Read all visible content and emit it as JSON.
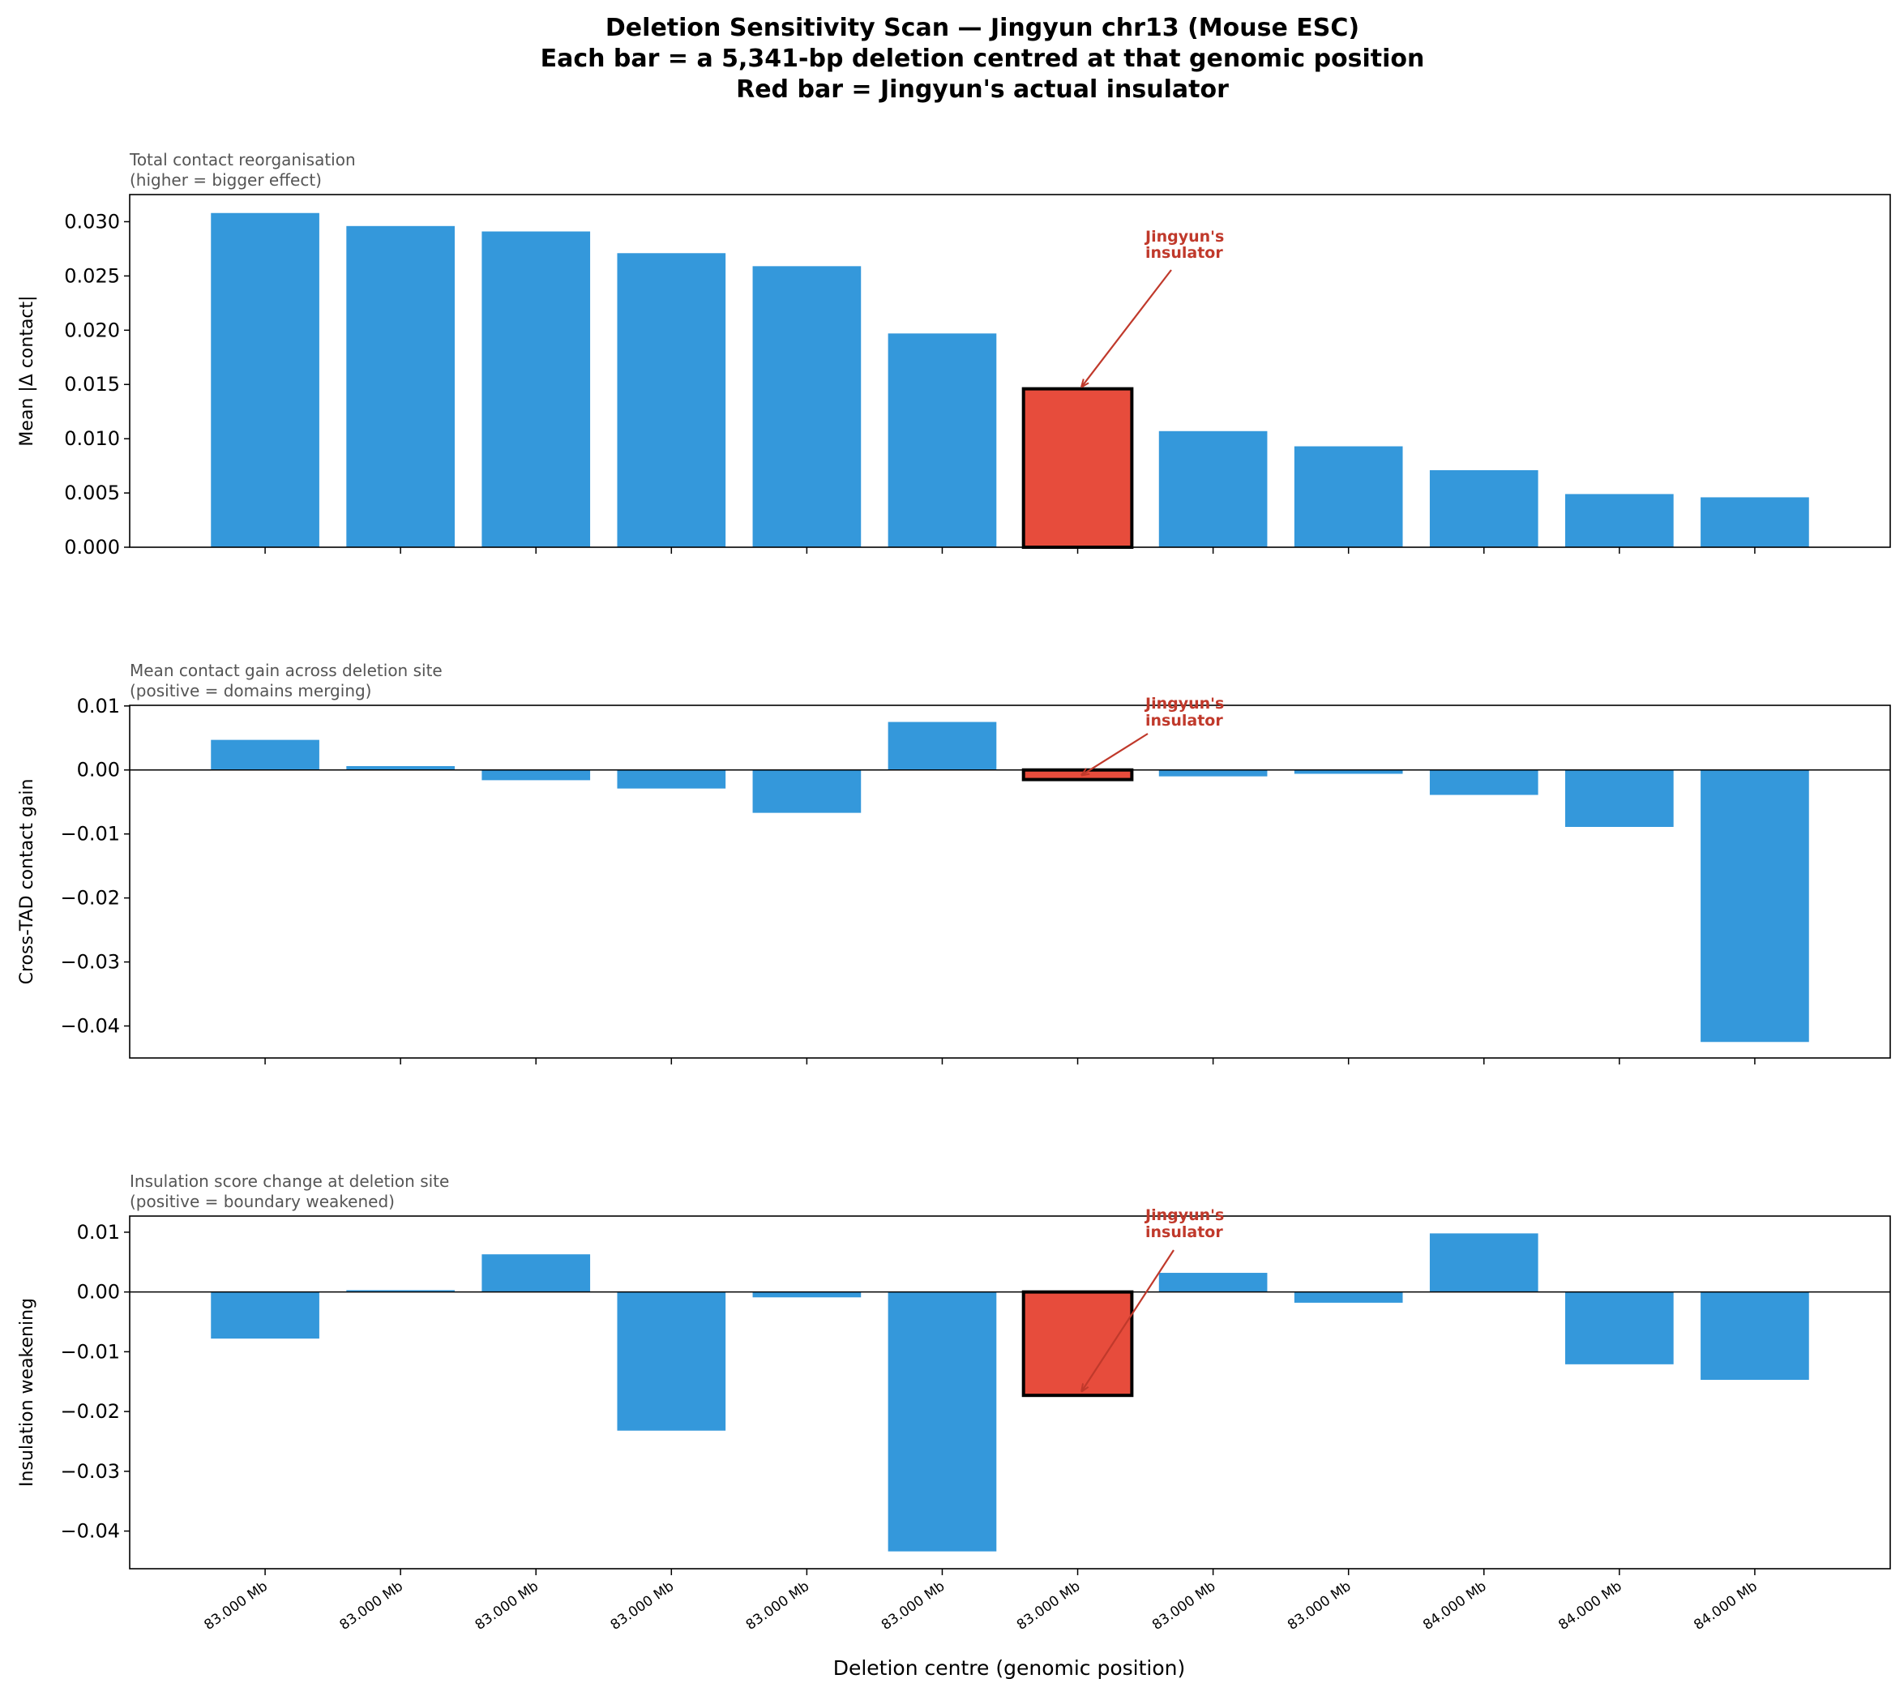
{
  "chart_data": {
    "type": "bar",
    "title_lines": [
      "Deletion Sensitivity Scan — Jingyun chr13 (Mouse ESC)",
      "Each bar = a 5,341-bp deletion centred at that genomic position",
      "Red bar = Jingyun's actual insulator"
    ],
    "xlabel": "Deletion centre (genomic position)",
    "categories": [
      "83.000 Mb",
      "83.000 Mb",
      "83.000 Mb",
      "83.000 Mb",
      "83.000 Mb",
      "83.000 Mb",
      "83.000 Mb",
      "83.000 Mb",
      "83.000 Mb",
      "84.000 Mb",
      "84.000 Mb",
      "84.000 Mb"
    ],
    "highlight_index": 6,
    "colors": {
      "bar": "#3498db",
      "highlight": "#e74c3c",
      "annotation": "#c0392b",
      "subtitle": "#555555"
    },
    "annotation": "Jingyun's\ninsulator",
    "annotation_lines": [
      "Jingyun's",
      "insulator"
    ],
    "panels": [
      {
        "subtitle_lines": [
          "Total contact reorganisation",
          "(higher = bigger effect)"
        ],
        "ylabel": "Mean |Δ contact|",
        "ylim": [
          0,
          0.0325
        ],
        "yticks": [
          0,
          0.005,
          0.01,
          0.015,
          0.02,
          0.025,
          0.03
        ],
        "ytick_labels": [
          "0.000",
          "0.005",
          "0.010",
          "0.015",
          "0.020",
          "0.025",
          "0.030"
        ],
        "values": [
          0.0308,
          0.0296,
          0.0291,
          0.0271,
          0.0259,
          0.0197,
          0.0146,
          0.0107,
          0.0093,
          0.0071,
          0.0049,
          0.0046
        ],
        "zero_line": false,
        "annotation_target": 0.0148
      },
      {
        "subtitle_lines": [
          "Mean contact gain across deletion site",
          "(positive = domains merging)"
        ],
        "ylabel": "Cross-TAD contact gain",
        "ylim": [
          -0.045,
          0.0101
        ],
        "yticks": [
          0.01,
          0,
          -0.01,
          -0.02,
          -0.03,
          -0.04
        ],
        "ytick_labels": [
          "0.01",
          "0.00",
          "−0.01",
          "−0.02",
          "−0.03",
          "−0.04"
        ],
        "values": [
          0.0047,
          0.0006,
          -0.0016,
          -0.0029,
          -0.0067,
          0.0075,
          -0.0015,
          -0.001,
          -0.0006,
          -0.0039,
          -0.0089,
          -0.0425
        ],
        "zero_line": true,
        "annotation_target": -0.0008
      },
      {
        "subtitle_lines": [
          "Insulation score change at deletion site",
          "(positive = boundary weakened)"
        ],
        "ylabel": "Insulation weakening",
        "ylim": [
          -0.0463,
          0.0127
        ],
        "yticks": [
          0.01,
          0,
          -0.01,
          -0.02,
          -0.03,
          -0.04
        ],
        "ytick_labels": [
          "0.01",
          "0.00",
          "−0.01",
          "−0.02",
          "−0.03",
          "−0.04"
        ],
        "values": [
          -0.0078,
          0.0003,
          0.0063,
          -0.0232,
          -0.0009,
          -0.0434,
          -0.0173,
          0.0032,
          -0.0018,
          0.0098,
          -0.0121,
          -0.0147
        ],
        "zero_line": true,
        "annotation_target": -0.0166
      }
    ]
  }
}
